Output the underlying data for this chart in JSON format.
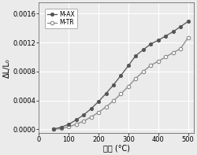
{
  "title": "",
  "xlabel": "温度 (°C)",
  "ylabel": "ΔL/L₀",
  "xlim": [
    30,
    520
  ],
  "ylim": [
    -5e-05,
    0.00175
  ],
  "xticks": [
    0,
    100,
    200,
    300,
    400,
    500
  ],
  "yticks": [
    0.0,
    0.0004,
    0.0008,
    0.0012,
    0.0016
  ],
  "M_AX_x": [
    50,
    75,
    100,
    125,
    150,
    175,
    200,
    225,
    250,
    275,
    300,
    325,
    350,
    375,
    400,
    425,
    450,
    475,
    500
  ],
  "M_AX_y": [
    5e-06,
    3e-05,
    7e-05,
    0.00013,
    0.0002,
    0.000285,
    0.000385,
    0.000495,
    0.000615,
    0.000745,
    0.00088,
    0.00102,
    0.0011,
    0.00118,
    0.00123,
    0.00129,
    0.00135,
    0.00142,
    0.00149
  ],
  "M_TR_x": [
    50,
    75,
    100,
    125,
    150,
    175,
    200,
    225,
    250,
    275,
    300,
    325,
    350,
    375,
    400,
    425,
    450,
    475,
    500
  ],
  "M_TR_y": [
    0.0,
    1e-05,
    3.5e-05,
    7e-05,
    0.000115,
    0.00017,
    0.000235,
    0.00031,
    0.000395,
    0.00049,
    0.000595,
    0.000705,
    0.0008,
    0.000885,
    0.00094,
    0.001,
    0.00106,
    0.001115,
    0.001265
  ],
  "color_AX": "#555555",
  "color_TR": "#888888",
  "bg_color": "#ebebeb",
  "grid_color": "#ffffff",
  "legend_labels": [
    "M-AX",
    "M-TR"
  ],
  "linewidth": 0.9,
  "markersize": 3.2
}
